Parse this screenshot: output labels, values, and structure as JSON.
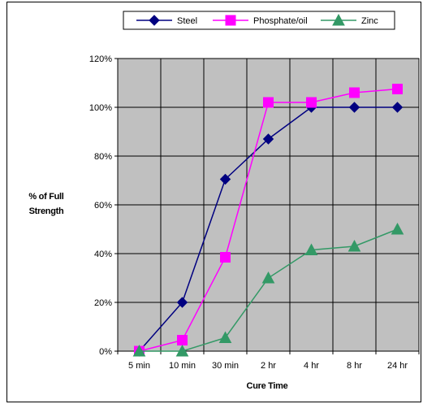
{
  "chart_data": {
    "type": "line",
    "categories": [
      "5 min",
      "10 min",
      "30 min",
      "2 hr",
      "4 hr",
      "8 hr",
      "24 hr"
    ],
    "series": [
      {
        "name": "Steel",
        "values": [
          0,
          20,
          70.5,
          87,
          100,
          100,
          100
        ],
        "color": "#000080",
        "marker": "diamond"
      },
      {
        "name": "Phosphate/oil",
        "values": [
          0,
          4.5,
          38.5,
          102,
          102,
          106,
          107.5
        ],
        "color": "#FF00FF",
        "marker": "square"
      },
      {
        "name": "Zinc",
        "values": [
          0,
          0,
          5.5,
          30,
          41.5,
          43,
          50
        ],
        "color": "#339966",
        "marker": "triangle"
      }
    ],
    "xlabel": "Cure Time",
    "ylabel_line1": "% of Full",
    "ylabel_line2": "Strength",
    "ylim": [
      0,
      120
    ],
    "yticks": [
      "0%",
      "20%",
      "40%",
      "60%",
      "80%",
      "100%",
      "120%"
    ],
    "ytick_values": [
      0,
      20,
      40,
      60,
      80,
      100,
      120
    ],
    "grid": true,
    "plot_background": "#C0C0C0",
    "legend_position": "top"
  }
}
